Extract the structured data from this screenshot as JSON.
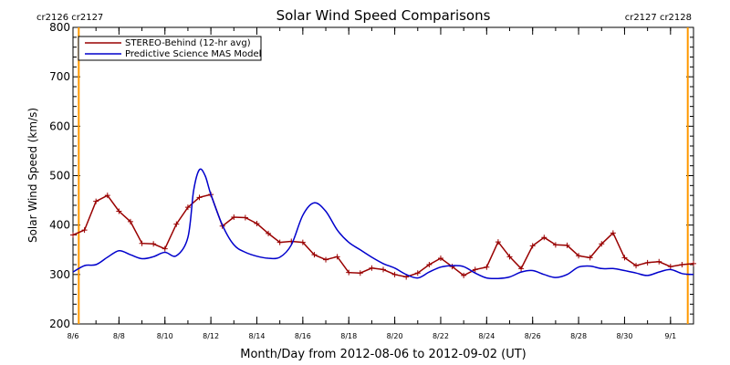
{
  "colors": {
    "stereo": "#990000",
    "model": "#0000cc",
    "carrington": "#ff9900",
    "axis": "#000000"
  },
  "carrington_labels": {
    "left": "cr2126 cr2127",
    "right": "cr2127 cr2128"
  },
  "chart_data": {
    "type": "line",
    "title": "Solar Wind Speed Comparisons",
    "xlabel": "Month/Day from 2012-08-06 to 2012-09-02 (UT)",
    "ylabel": "Solar Wind Speed (km/s)",
    "xlim": [
      "2012-08-06 00:00",
      "2012-09-02 00:00"
    ],
    "ylim": [
      200,
      800
    ],
    "xticks": [
      {
        "label": "8/6",
        "x": "2012-08-06"
      },
      {
        "label": "8/8",
        "x": "2012-08-08"
      },
      {
        "label": "8/10",
        "x": "2012-08-10"
      },
      {
        "label": "8/12",
        "x": "2012-08-12"
      },
      {
        "label": "8/14",
        "x": "2012-08-14"
      },
      {
        "label": "8/16",
        "x": "2012-08-16"
      },
      {
        "label": "8/18",
        "x": "2012-08-18"
      },
      {
        "label": "8/20",
        "x": "2012-08-20"
      },
      {
        "label": "8/22",
        "x": "2012-08-22"
      },
      {
        "label": "8/24",
        "x": "2012-08-24"
      },
      {
        "label": "8/26",
        "x": "2012-08-26"
      },
      {
        "label": "8/28",
        "x": "2012-08-28"
      },
      {
        "label": "8/30",
        "x": "2012-08-30"
      },
      {
        "label": "9/1",
        "x": "2012-09-01"
      }
    ],
    "yticks": [
      200,
      300,
      400,
      500,
      600,
      700,
      800
    ],
    "carrington_boundaries": [
      "2012-08-06 06:00",
      "2012-09-01 18:00"
    ],
    "legend": "top-left",
    "series": [
      {
        "name": "STEREO-Behind (12-hr avg)",
        "marker": "plus",
        "points": [
          [
            "2012-08-06 00:00",
            380
          ],
          [
            "2012-08-06 12:00",
            390
          ],
          [
            "2012-08-07 00:00",
            448
          ],
          [
            "2012-08-07 12:00",
            460
          ],
          [
            "2012-08-08 00:00",
            428
          ],
          [
            "2012-08-08 12:00",
            407
          ],
          [
            "2012-08-09 00:00",
            363
          ],
          [
            "2012-08-09 12:00",
            362
          ],
          [
            "2012-08-10 00:00",
            352
          ],
          [
            "2012-08-10 12:00",
            402
          ],
          [
            "2012-08-11 00:00",
            436
          ],
          [
            "2012-08-11 12:00",
            456
          ],
          [
            "2012-08-12 00:00",
            462
          ],
          [
            "2012-08-12 12:00",
            398
          ],
          [
            "2012-08-13 00:00",
            416
          ],
          [
            "2012-08-13 12:00",
            415
          ],
          [
            "2012-08-14 00:00",
            403
          ],
          [
            "2012-08-14 12:00",
            383
          ],
          [
            "2012-08-15 00:00",
            365
          ],
          [
            "2012-08-15 12:00",
            367
          ],
          [
            "2012-08-16 00:00",
            365
          ],
          [
            "2012-08-16 12:00",
            340
          ],
          [
            "2012-08-17 00:00",
            330
          ],
          [
            "2012-08-17 12:00",
            336
          ],
          [
            "2012-08-18 00:00",
            304
          ],
          [
            "2012-08-18 12:00",
            303
          ],
          [
            "2012-08-19 00:00",
            313
          ],
          [
            "2012-08-19 12:00",
            310
          ],
          [
            "2012-08-20 00:00",
            300
          ],
          [
            "2012-08-20 12:00",
            295
          ],
          [
            "2012-08-21 00:00",
            303
          ],
          [
            "2012-08-21 12:00",
            320
          ],
          [
            "2012-08-22 00:00",
            333
          ],
          [
            "2012-08-22 12:00",
            316
          ],
          [
            "2012-08-23 00:00",
            298
          ],
          [
            "2012-08-23 12:00",
            310
          ],
          [
            "2012-08-24 00:00",
            315
          ],
          [
            "2012-08-24 12:00",
            366
          ],
          [
            "2012-08-25 00:00",
            336
          ],
          [
            "2012-08-25 12:00",
            312
          ],
          [
            "2012-08-26 00:00",
            358
          ],
          [
            "2012-08-26 12:00",
            375
          ],
          [
            "2012-08-27 00:00",
            360
          ],
          [
            "2012-08-27 12:00",
            359
          ],
          [
            "2012-08-28 00:00",
            338
          ],
          [
            "2012-08-28 12:00",
            334
          ],
          [
            "2012-08-29 00:00",
            362
          ],
          [
            "2012-08-29 12:00",
            384
          ],
          [
            "2012-08-30 00:00",
            334
          ],
          [
            "2012-08-30 12:00",
            318
          ],
          [
            "2012-08-31 00:00",
            324
          ],
          [
            "2012-08-31 12:00",
            326
          ],
          [
            "2012-09-01 00:00",
            316
          ],
          [
            "2012-09-01 12:00",
            320
          ],
          [
            "2012-09-02 00:00",
            322
          ]
        ]
      },
      {
        "name": "Predictive Science MAS Model",
        "marker": "none",
        "points": [
          [
            "2012-08-06 00:00",
            305
          ],
          [
            "2012-08-06 12:00",
            318
          ],
          [
            "2012-08-07 00:00",
            320
          ],
          [
            "2012-08-07 12:00",
            335
          ],
          [
            "2012-08-08 00:00",
            348
          ],
          [
            "2012-08-08 12:00",
            340
          ],
          [
            "2012-08-09 00:00",
            332
          ],
          [
            "2012-08-09 12:00",
            336
          ],
          [
            "2012-08-10 00:00",
            345
          ],
          [
            "2012-08-10 12:00",
            338
          ],
          [
            "2012-08-11 00:00",
            375
          ],
          [
            "2012-08-11 06:00",
            470
          ],
          [
            "2012-08-11 12:00",
            512
          ],
          [
            "2012-08-11 18:00",
            500
          ],
          [
            "2012-08-12 00:00",
            462
          ],
          [
            "2012-08-12 12:00",
            400
          ],
          [
            "2012-08-13 00:00",
            360
          ],
          [
            "2012-08-13 12:00",
            345
          ],
          [
            "2012-08-14 00:00",
            337
          ],
          [
            "2012-08-14 12:00",
            333
          ],
          [
            "2012-08-15 00:00",
            335
          ],
          [
            "2012-08-15 12:00",
            360
          ],
          [
            "2012-08-16 00:00",
            420
          ],
          [
            "2012-08-16 12:00",
            445
          ],
          [
            "2012-08-17 00:00",
            428
          ],
          [
            "2012-08-17 12:00",
            390
          ],
          [
            "2012-08-18 00:00",
            365
          ],
          [
            "2012-08-18 12:00",
            350
          ],
          [
            "2012-08-19 00:00",
            335
          ],
          [
            "2012-08-19 12:00",
            322
          ],
          [
            "2012-08-20 00:00",
            313
          ],
          [
            "2012-08-20 12:00",
            300
          ],
          [
            "2012-08-21 00:00",
            293
          ],
          [
            "2012-08-21 12:00",
            305
          ],
          [
            "2012-08-22 00:00",
            315
          ],
          [
            "2012-08-22 12:00",
            318
          ],
          [
            "2012-08-23 00:00",
            316
          ],
          [
            "2012-08-23 12:00",
            303
          ],
          [
            "2012-08-24 00:00",
            293
          ],
          [
            "2012-08-24 12:00",
            292
          ],
          [
            "2012-08-25 00:00",
            295
          ],
          [
            "2012-08-25 12:00",
            305
          ],
          [
            "2012-08-26 00:00",
            308
          ],
          [
            "2012-08-26 12:00",
            300
          ],
          [
            "2012-08-27 00:00",
            294
          ],
          [
            "2012-08-27 12:00",
            300
          ],
          [
            "2012-08-28 00:00",
            315
          ],
          [
            "2012-08-28 12:00",
            317
          ],
          [
            "2012-08-29 00:00",
            312
          ],
          [
            "2012-08-29 12:00",
            312
          ],
          [
            "2012-08-30 00:00",
            308
          ],
          [
            "2012-08-30 12:00",
            303
          ],
          [
            "2012-08-31 00:00",
            298
          ],
          [
            "2012-08-31 12:00",
            305
          ],
          [
            "2012-09-01 00:00",
            310
          ],
          [
            "2012-09-01 12:00",
            302
          ],
          [
            "2012-09-02 00:00",
            300
          ]
        ]
      }
    ]
  }
}
